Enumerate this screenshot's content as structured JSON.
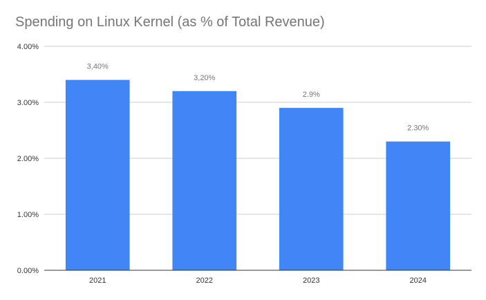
{
  "chart_data": {
    "type": "bar",
    "title": "Spending on Linux Kernel (as % of Total Revenue)",
    "xlabel": "",
    "ylabel": "",
    "categories": [
      "2021",
      "2022",
      "2023",
      "2024"
    ],
    "values": [
      3.4,
      3.2,
      2.9,
      2.3
    ],
    "data_labels": [
      "3,40%",
      "3,20%",
      "2.9%",
      "2.30%"
    ],
    "ylim": [
      0,
      4
    ],
    "yticks": [
      "0.00%",
      "1.00%",
      "2.00%",
      "3.00%",
      "4.00%"
    ],
    "grid": true,
    "legend": "none",
    "colors": {
      "bar": "#4285f4",
      "grid": "#cccccc",
      "axis": "#333333",
      "title": "#757575",
      "tick_label": "#333333",
      "data_label": "#757575"
    }
  }
}
